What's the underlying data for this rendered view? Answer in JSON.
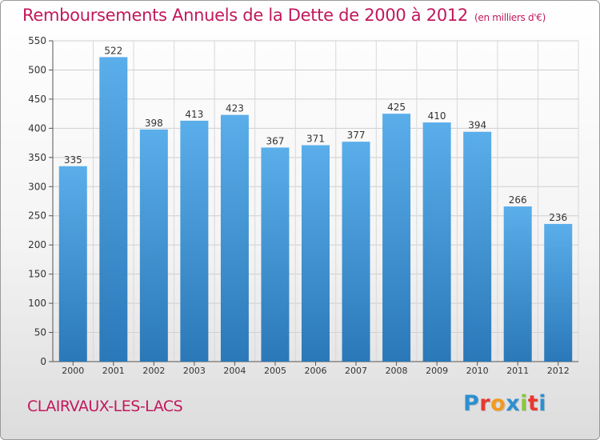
{
  "chart_data": {
    "type": "bar",
    "title": "Remboursements Annuels de la Dette de 2000 à 2012",
    "subtitle": "(en milliers d'€)",
    "categories": [
      "2000",
      "2001",
      "2002",
      "2003",
      "2004",
      "2005",
      "2006",
      "2007",
      "2008",
      "2009",
      "2010",
      "2011",
      "2012"
    ],
    "values": [
      335,
      522,
      398,
      413,
      423,
      367,
      371,
      377,
      425,
      410,
      394,
      266,
      236
    ],
    "ylim": [
      0,
      550
    ],
    "yticks": [
      0,
      50,
      100,
      150,
      200,
      250,
      300,
      350,
      400,
      450,
      500,
      550
    ],
    "xlabel": "",
    "ylabel": "",
    "grid": true
  },
  "commune": "CLAIRVAUX-LES-LACS",
  "logo": {
    "letters": [
      "P",
      "r",
      "o",
      "x",
      "i",
      "t",
      "i"
    ],
    "colors": [
      "#2e8fd0",
      "#e8382f",
      "#f29a1f",
      "#2e8fd0",
      "#8cc63f",
      "#e8382f",
      "#2e8fd0"
    ]
  },
  "colors": {
    "title": "#c2185b",
    "bar_top": "#5aaeea",
    "bar_bottom": "#2b78b8"
  }
}
